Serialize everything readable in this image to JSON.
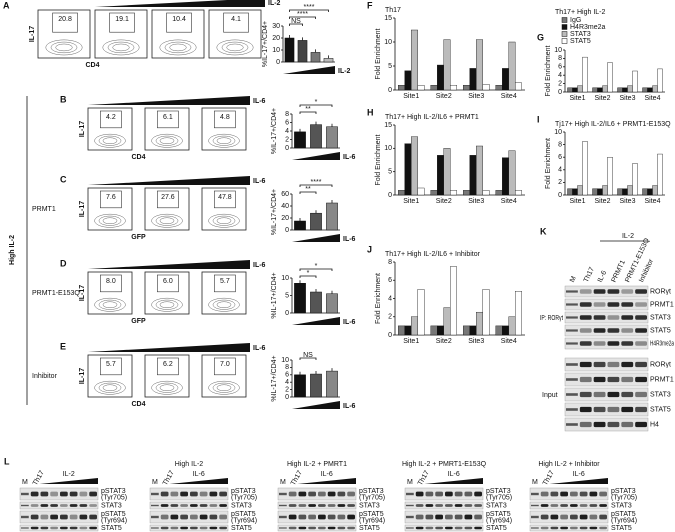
{
  "flow": {
    "side_label": "High IL-2",
    "rows": [
      {
        "label": "A",
        "gradient": "IL-2",
        "y_axis": "IL-17",
        "x_axis": "CD4",
        "gates": [
          "20.8",
          "19.1",
          "10.4",
          "4.1"
        ]
      },
      {
        "label": "B",
        "gradient": "IL-6",
        "y_axis": "IL-17",
        "x_axis": "CD4",
        "gates": [
          "4.2",
          "6.1",
          "4.8"
        ]
      },
      {
        "label": "C",
        "row_label": "PRMT1",
        "gradient": "IL-6",
        "y_axis": "IL-17",
        "x_axis": "GFP",
        "gates": [
          "7.6",
          "27.6",
          "47.8"
        ]
      },
      {
        "label": "D",
        "row_label": "PRMT1-E153Q",
        "gradient": "IL-6",
        "y_axis": "IL-17",
        "x_axis": "GFP",
        "gates": [
          "8.0",
          "6.0",
          "5.7"
        ]
      },
      {
        "label": "E",
        "row_label": "Inhibitor",
        "gradient": "IL-6",
        "y_axis": "IL-17",
        "x_axis": "CD4",
        "gates": [
          "5.7",
          "6.2",
          "7.0"
        ]
      }
    ]
  },
  "chart_data": [
    {
      "type": "bar",
      "ylabel": "%IL-17+/CD4+",
      "xlabel": "IL-2",
      "ylim": [
        0,
        30
      ],
      "yticks": [
        0,
        10,
        20,
        30
      ],
      "values": [
        20,
        18,
        8,
        3
      ],
      "colors": [
        "#111111",
        "#444444",
        "#777777",
        "#bbbbbb"
      ],
      "significance": [
        "NS",
        "****",
        "****"
      ]
    },
    {
      "type": "bar",
      "ylabel": "%IL-17+/CD4+",
      "xlabel": "IL-6",
      "ylim": [
        0,
        8
      ],
      "yticks": [
        0,
        2,
        4,
        6,
        8
      ],
      "values": [
        3.8,
        5.5,
        5.0
      ],
      "colors": [
        "#111111",
        "#555555",
        "#888888"
      ],
      "significance": [
        "**",
        "*"
      ]
    },
    {
      "type": "bar",
      "ylabel": "%IL-17+/CD4+",
      "xlabel": "IL-6",
      "ylim": [
        0,
        60
      ],
      "yticks": [
        0,
        20,
        40,
        60
      ],
      "values": [
        15,
        28,
        45
      ],
      "colors": [
        "#111111",
        "#555555",
        "#888888"
      ],
      "significance": [
        "**",
        "****"
      ]
    },
    {
      "type": "bar",
      "ylabel": "%IL-17+/CD4+",
      "xlabel": "IL-6",
      "ylim": [
        0,
        10
      ],
      "yticks": [
        0,
        5,
        10
      ],
      "values": [
        8.5,
        6,
        5.5
      ],
      "colors": [
        "#111111",
        "#555555",
        "#888888"
      ],
      "significance": [
        "*",
        "*"
      ]
    },
    {
      "type": "bar",
      "ylabel": "%IL-17+/CD4+",
      "xlabel": "IL-6",
      "ylim": [
        0,
        10
      ],
      "yticks": [
        0,
        2,
        4,
        6,
        8,
        10
      ],
      "values": [
        6,
        6.2,
        7
      ],
      "colors": [
        "#111111",
        "#555555",
        "#888888"
      ],
      "significance": [
        "NS"
      ]
    },
    {
      "type": "grouped_bar",
      "label": "F",
      "title": "Th17",
      "ylabel": "Fold Enrichment",
      "categories": [
        "Site1",
        "Site2",
        "Site3",
        "Site4"
      ],
      "ylim": [
        0,
        15
      ],
      "yticks": [
        0,
        5,
        10,
        15
      ],
      "series": [
        {
          "color": "#777777",
          "values": [
            1,
            1,
            1,
            1
          ]
        },
        {
          "color": "#111111",
          "values": [
            4,
            5.2,
            4.5,
            4.5
          ]
        },
        {
          "color": "#bbbbbb",
          "values": [
            12.5,
            10.5,
            10.5,
            10
          ]
        },
        {
          "color": "#ffffff",
          "values": [
            1,
            1,
            1.2,
            1.5
          ]
        }
      ]
    },
    {
      "type": "grouped_bar",
      "label": "G",
      "title": "Th17+ High IL-2",
      "ylabel": "Fold Enrichment",
      "categories": [
        "Site1",
        "Site2",
        "Site3",
        "Site4"
      ],
      "ylim": [
        0,
        10
      ],
      "yticks": [
        0,
        2,
        4,
        6,
        8,
        10
      ],
      "legend": "top",
      "series": [
        {
          "name": "IgG",
          "color": "#777777",
          "values": [
            1,
            1,
            1,
            1
          ]
        },
        {
          "name": "H4R3me2a",
          "color": "#111111",
          "values": [
            1,
            1,
            1,
            1
          ]
        },
        {
          "name": "STAT3",
          "color": "#bbbbbb",
          "values": [
            1.5,
            1.5,
            1.5,
            1.5
          ]
        },
        {
          "name": "STAT5",
          "color": "#ffffff",
          "values": [
            8.3,
            7,
            5,
            5.5
          ]
        }
      ]
    },
    {
      "type": "grouped_bar",
      "label": "H",
      "title": "Th17+ High IL-2/IL6 + PRMT1",
      "ylabel": "Fold Enrichment",
      "categories": [
        "Site1",
        "Site2",
        "Site3",
        "Site4"
      ],
      "ylim": [
        0,
        15
      ],
      "yticks": [
        0,
        5,
        10,
        15
      ],
      "series": [
        {
          "color": "#777777",
          "values": [
            1,
            1,
            1,
            1
          ]
        },
        {
          "color": "#111111",
          "values": [
            11,
            8.5,
            8.5,
            8
          ]
        },
        {
          "color": "#bbbbbb",
          "values": [
            12.5,
            10,
            10.5,
            9.5
          ]
        },
        {
          "color": "#ffffff",
          "values": [
            1.5,
            1,
            1,
            1
          ]
        }
      ]
    },
    {
      "type": "grouped_bar",
      "label": "I",
      "title": "Tj17+ High IL-2/IL6 + PRMT1-E153Q",
      "ylabel": "Fold Enrichment",
      "categories": [
        "Site1",
        "Site2",
        "Site3",
        "Site4"
      ],
      "ylim": [
        0,
        10
      ],
      "yticks": [
        0,
        2,
        4,
        6,
        8,
        10
      ],
      "series": [
        {
          "color": "#777777",
          "values": [
            1,
            1,
            1,
            1
          ]
        },
        {
          "color": "#111111",
          "values": [
            1,
            1,
            1,
            1
          ]
        },
        {
          "color": "#bbbbbb",
          "values": [
            1.5,
            1.5,
            1.5,
            1.5
          ]
        },
        {
          "color": "#ffffff",
          "values": [
            8.5,
            6,
            5,
            6.5
          ]
        }
      ]
    },
    {
      "type": "grouped_bar",
      "label": "J",
      "title": "Th17+ High IL-2/IL6 + Inhibitor",
      "ylabel": "Fold Enrichment",
      "categories": [
        "Site1",
        "Site2",
        "Site3",
        "Site4"
      ],
      "ylim": [
        0,
        8
      ],
      "yticks": [
        0,
        2,
        4,
        6,
        8
      ],
      "series": [
        {
          "color": "#777777",
          "values": [
            1,
            1,
            1,
            1
          ]
        },
        {
          "color": "#111111",
          "values": [
            1,
            1,
            1,
            1
          ]
        },
        {
          "color": "#bbbbbb",
          "values": [
            2,
            3,
            2.5,
            2
          ]
        },
        {
          "color": "#ffffff",
          "values": [
            5,
            7.5,
            5,
            4.8
          ]
        }
      ]
    }
  ],
  "ip_blot": {
    "label": "K",
    "header": "IL-2",
    "lanes": [
      "M",
      "Th17",
      "IL-6",
      "PRMT1",
      "PRMT1-E153Q",
      "Inhibitor"
    ],
    "ip_label": "IP: RORγt",
    "input_label": "Input",
    "ip_bands": [
      "RORγt",
      "PRMT1",
      "STAT3",
      "STAT5",
      "H4R3me2a"
    ],
    "input_bands": [
      "RORγt",
      "PRMT1",
      "STAT3",
      "STAT5",
      "H4"
    ]
  },
  "time_blots": {
    "label": "L",
    "bands": [
      {
        "name": "pSTAT3",
        "site": "(Tyr705)"
      },
      {
        "name": "STAT3"
      },
      {
        "name": "pSTAT5",
        "site": "(Tyr694)"
      },
      {
        "name": "STAT5"
      }
    ],
    "panels": [
      {
        "lanes": [
          "M",
          "Th17",
          "IL-2"
        ]
      },
      {
        "title": "High IL-2",
        "lanes": [
          "M",
          "Th17",
          "IL-6"
        ]
      },
      {
        "title": "High IL-2 + PMRT1",
        "lanes": [
          "M",
          "Th17",
          "IL-6"
        ]
      },
      {
        "title": "High IL-2 + PMRT1-E153Q",
        "lanes": [
          "M",
          "Th17",
          "IL-6"
        ]
      },
      {
        "title": "High IL-2 + Inhibitor",
        "lanes": [
          "M",
          "Th17",
          "IL-6"
        ]
      }
    ]
  }
}
